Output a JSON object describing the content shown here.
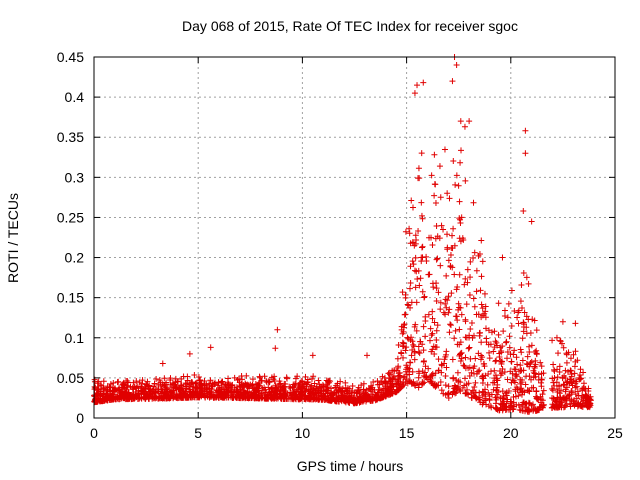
{
  "chart_data": {
    "type": "scatter",
    "title": "Day 068 of 2015, Rate Of TEC Index for receiver sgoc",
    "xlabel": "GPS time / hours",
    "ylabel": "ROTI / TECUs",
    "xlim": [
      0,
      25
    ],
    "ylim": [
      0,
      0.45
    ],
    "x_ticks": [
      "0",
      "5",
      "10",
      "15",
      "20",
      "25"
    ],
    "y_ticks": [
      "0",
      "0.05",
      "0.1",
      "0.15",
      "0.2",
      "0.25",
      "0.3",
      "0.35",
      "0.4",
      "0.45"
    ],
    "grid": true,
    "marker": "+",
    "color": "#e00000",
    "series": [
      {
        "profile": [
          {
            "x": 0.0,
            "base": 0.022,
            "spread": 0.03
          },
          {
            "x": 1.0,
            "base": 0.025,
            "spread": 0.022
          },
          {
            "x": 3.0,
            "base": 0.026,
            "spread": 0.025
          },
          {
            "x": 5.0,
            "base": 0.028,
            "spread": 0.03
          },
          {
            "x": 7.0,
            "base": 0.027,
            "spread": 0.028
          },
          {
            "x": 9.0,
            "base": 0.026,
            "spread": 0.028
          },
          {
            "x": 11.0,
            "base": 0.025,
            "spread": 0.03
          },
          {
            "x": 12.5,
            "base": 0.02,
            "spread": 0.022
          },
          {
            "x": 13.5,
            "base": 0.024,
            "spread": 0.025
          },
          {
            "x": 14.5,
            "base": 0.035,
            "spread": 0.035
          },
          {
            "x": 15.0,
            "base": 0.06,
            "spread": 0.2
          },
          {
            "x": 15.5,
            "base": 0.06,
            "spread": 0.3
          },
          {
            "x": 16.0,
            "base": 0.07,
            "spread": 0.28
          },
          {
            "x": 16.5,
            "base": 0.06,
            "spread": 0.3
          },
          {
            "x": 17.0,
            "base": 0.05,
            "spread": 0.32
          },
          {
            "x": 17.5,
            "base": 0.06,
            "spread": 0.33
          },
          {
            "x": 18.0,
            "base": 0.05,
            "spread": 0.28
          },
          {
            "x": 18.5,
            "base": 0.035,
            "spread": 0.22
          },
          {
            "x": 19.0,
            "base": 0.025,
            "spread": 0.14
          },
          {
            "x": 19.5,
            "base": 0.02,
            "spread": 0.14
          },
          {
            "x": 20.0,
            "base": 0.025,
            "spread": 0.18
          },
          {
            "x": 20.5,
            "base": 0.025,
            "spread": 0.2
          },
          {
            "x": 21.0,
            "base": 0.02,
            "spread": 0.16
          },
          {
            "x": 21.5,
            "base": 0.015,
            "spread": 0.05
          },
          {
            "x": 22.0,
            "base": 0.02,
            "spread": 0.09
          },
          {
            "x": 23.0,
            "base": 0.02,
            "spread": 0.08
          },
          {
            "x": 23.8,
            "base": 0.015,
            "spread": 0.02
          }
        ],
        "gap_hours": [
          [
            21.6,
            21.95
          ]
        ],
        "range_hours": [
          0.0,
          23.85
        ],
        "outliers": [
          [
            8.8,
            0.11
          ],
          [
            8.7,
            0.087
          ],
          [
            5.6,
            0.088
          ],
          [
            4.6,
            0.08
          ],
          [
            3.3,
            0.068
          ],
          [
            10.5,
            0.078
          ],
          [
            13.1,
            0.078
          ],
          [
            15.4,
            0.405
          ],
          [
            15.5,
            0.415
          ],
          [
            15.8,
            0.418
          ],
          [
            17.3,
            0.45
          ],
          [
            17.2,
            0.42
          ],
          [
            17.4,
            0.44
          ],
          [
            20.7,
            0.358
          ],
          [
            20.7,
            0.33
          ],
          [
            20.6,
            0.258
          ],
          [
            22.5,
            0.12
          ],
          [
            23.1,
            0.118
          ],
          [
            19.6,
            0.2
          ],
          [
            21.0,
            0.245
          ],
          [
            17.6,
            0.37
          ],
          [
            17.8,
            0.363
          ],
          [
            18.0,
            0.37
          ]
        ]
      }
    ]
  }
}
